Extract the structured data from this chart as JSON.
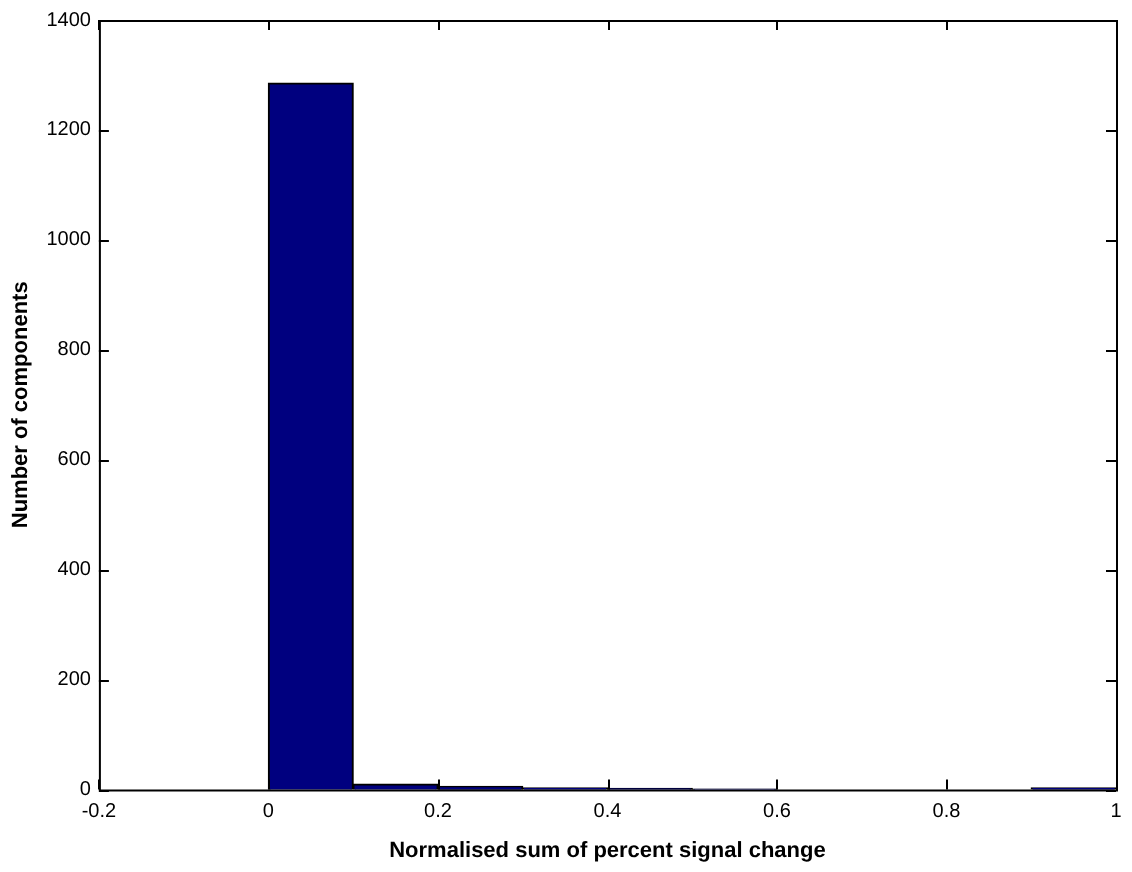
{
  "chart_data": {
    "type": "histogram",
    "xlabel": "Normalised sum of percent signal change",
    "ylabel": "Number of components",
    "bins": [
      0,
      0.1,
      0.2,
      0.3,
      0.4,
      0.5,
      0.6,
      0.7,
      0.8,
      0.9,
      1.0
    ],
    "values": [
      1285,
      10,
      6,
      3,
      2,
      1,
      0,
      0,
      0,
      3
    ],
    "color": "#00007f",
    "xlim": [
      -0.2,
      1
    ],
    "xticks": [
      -0.2,
      0,
      0.2,
      0.4,
      0.6,
      0.8,
      1
    ],
    "ylim": [
      0,
      1400
    ],
    "yticks": [
      0,
      200,
      400,
      600,
      800,
      1000,
      1200,
      1400
    ],
    "grid": false,
    "legend": false
  }
}
